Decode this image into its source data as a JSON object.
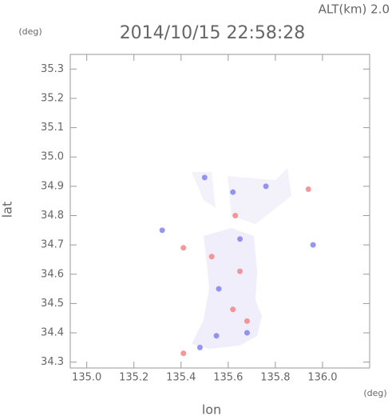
{
  "chart_data": {
    "type": "scatter",
    "title": "2014/10/15 22:58:28",
    "subtitle": "ALT(km) 2.0",
    "y_unit": "(deg)",
    "x_unit": "(deg)",
    "xlabel": "lon",
    "ylabel": "lat",
    "xlim": [
      134.93,
      136.2
    ],
    "ylim": [
      34.28,
      35.35
    ],
    "xticks": [
      {
        "value": 135,
        "label": "135.0"
      },
      135.2,
      135.4,
      135.6,
      135.8,
      {
        "value": 136,
        "label": "136.0"
      }
    ],
    "yticks": [
      34.3,
      34.4,
      34.5,
      34.6,
      34.7,
      34.8,
      34.9,
      {
        "value": 35,
        "label": "35.0"
      },
      35.1,
      35.2,
      35.3
    ],
    "series": [
      {
        "color": "#7b7bf0",
        "x": [
          135.65,
          135.55,
          135.48,
          135.68,
          135.56,
          135.62,
          135.76,
          135.96,
          135.32,
          135.5
        ],
        "values": [
          34.72,
          34.39,
          34.35,
          34.4,
          34.55,
          34.88,
          34.9,
          34.7,
          34.75,
          34.93
        ]
      },
      {
        "color": "#f08080",
        "x": [
          135.41,
          135.62,
          135.65,
          135.63,
          135.94,
          135.41,
          135.68,
          135.53
        ],
        "values": [
          34.33,
          34.48,
          34.61,
          34.8,
          34.89,
          34.69,
          34.44,
          34.66
        ]
      }
    ]
  }
}
